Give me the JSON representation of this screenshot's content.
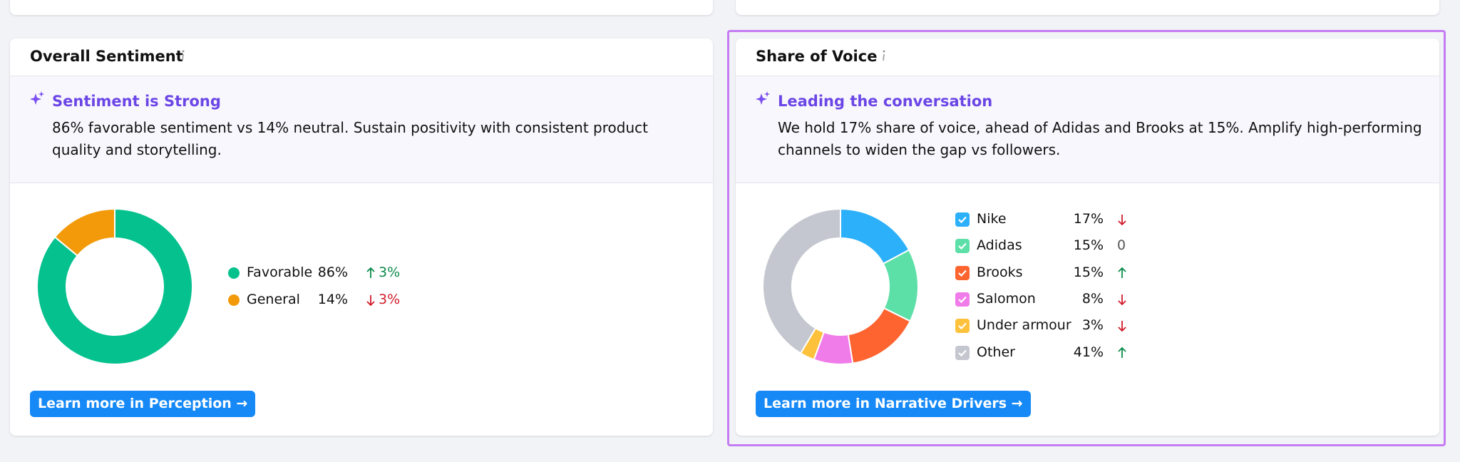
{
  "panels": [
    {
      "title": "Overall Sentiment",
      "insight": {
        "heading": "Sentiment is Strong",
        "text": "86% favorable sentiment vs 14% neutral. Sustain positivity with consistent product quality and storytelling."
      },
      "chart": {
        "type": "donut",
        "legend_marker": "dot",
        "categories": [
          "Favorable",
          "General"
        ],
        "values": [
          86,
          14
        ],
        "value_labels": [
          "86%",
          "14%"
        ],
        "colors": [
          "#05c18e",
          "#f29a0a"
        ],
        "changes": [
          "3%",
          "3%"
        ],
        "trends": [
          "up",
          "down"
        ]
      },
      "button": "Learn more in Perception →",
      "highlighted": false
    },
    {
      "title": "Share of Voice",
      "insight": {
        "heading": "Leading the conversation",
        "text": "We hold 17% share of voice, ahead of Adidas and Brooks at 15%. Amplify high-performing channels to widen the gap vs followers."
      },
      "chart": {
        "type": "donut",
        "legend_marker": "checkbox",
        "categories": [
          "Nike",
          "Adidas",
          "Brooks",
          "Salomon",
          "Under armour",
          "Other"
        ],
        "values": [
          17,
          15,
          15,
          8,
          3,
          41
        ],
        "value_labels": [
          "17%",
          "15%",
          "15%",
          "8%",
          "3%",
          "41%"
        ],
        "colors": [
          "#2bb0f9",
          "#5ddfa8",
          "#fd6430",
          "#f07ce9",
          "#fdc13c",
          "#c4c7cf"
        ],
        "changes": [
          null,
          "0",
          null,
          null,
          null,
          null
        ],
        "trends": [
          "down",
          "flat",
          "up",
          "down",
          "down",
          "up"
        ]
      },
      "button": "Learn more in Narrative Drivers →",
      "highlighted": true
    }
  ]
}
